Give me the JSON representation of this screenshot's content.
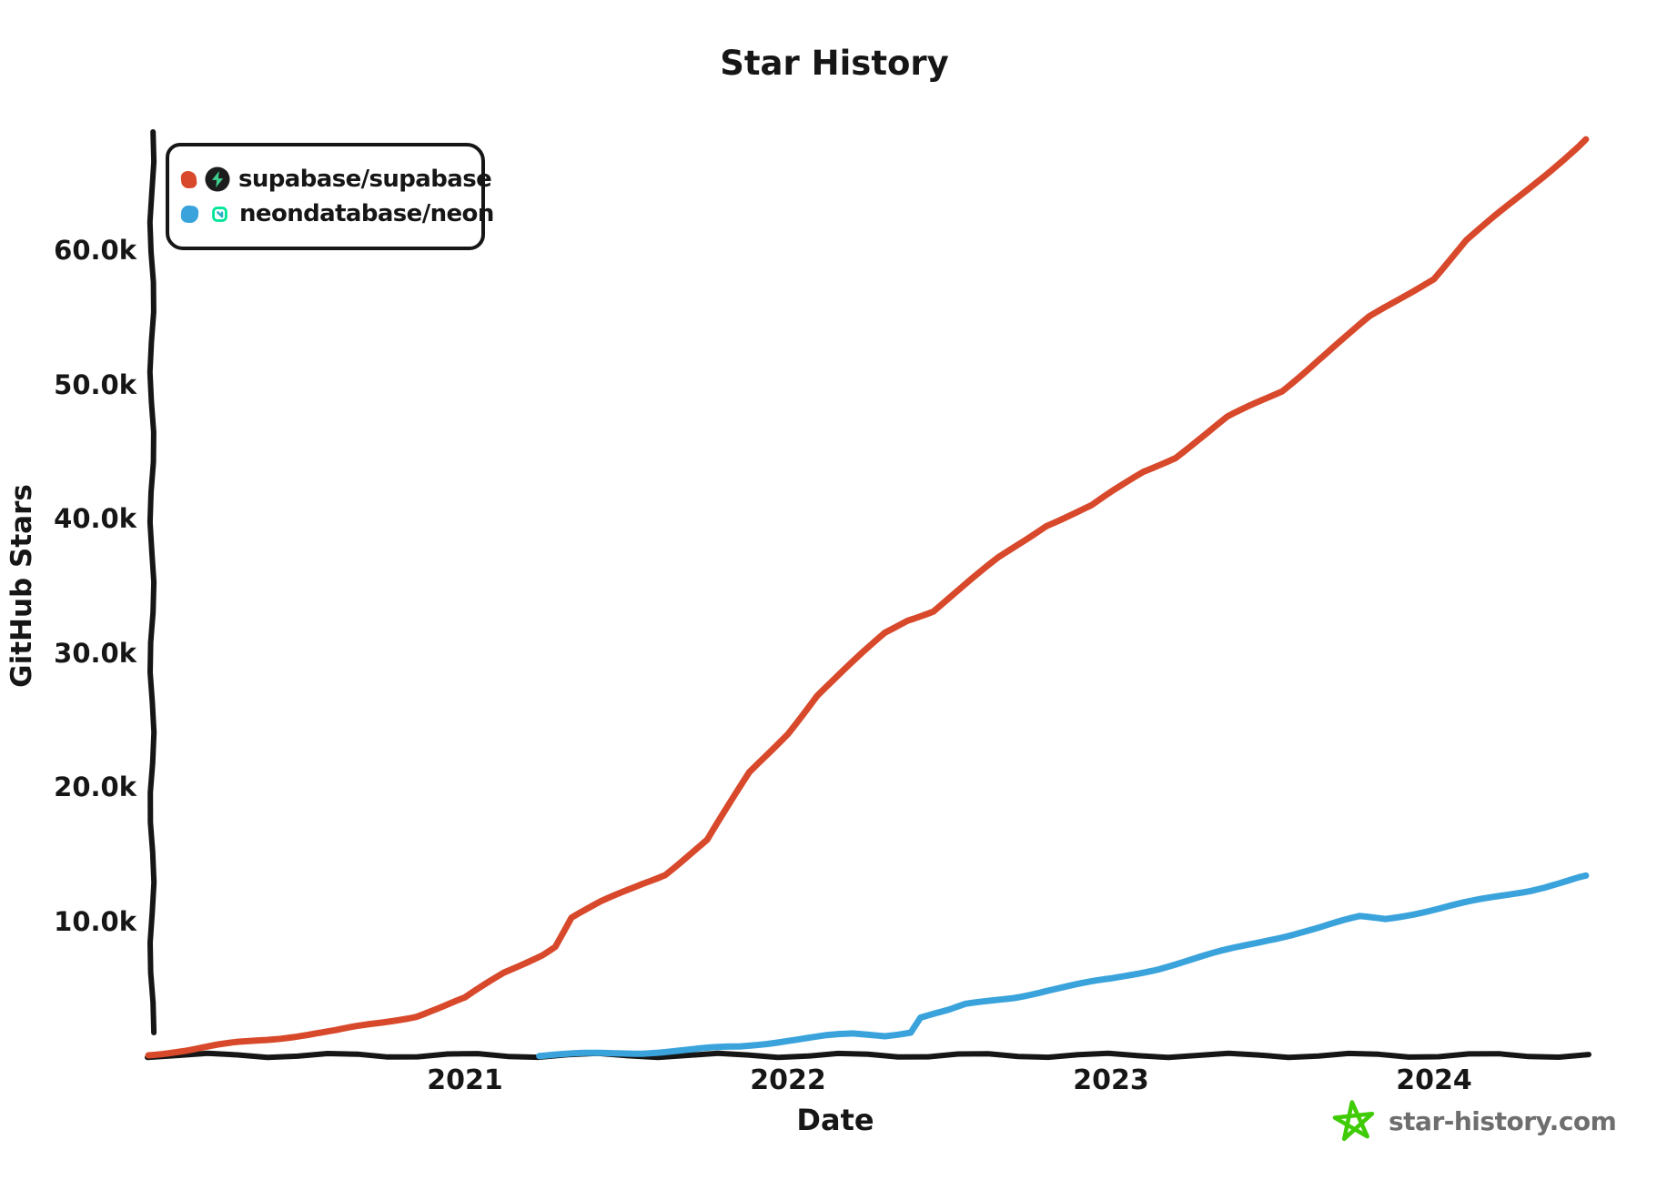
{
  "title": "Star History",
  "axes": {
    "x_label": "Date",
    "y_label": "GitHub Stars"
  },
  "legend": {
    "items": [
      {
        "label": "supabase/supabase",
        "color": "#D8492B",
        "icon": "supabase-logo"
      },
      {
        "label": "neondatabase/neon",
        "color": "#3AA3DC",
        "icon": "neon-logo"
      }
    ]
  },
  "watermark": {
    "text": "star-history.com"
  },
  "colors": {
    "axis": "#161616",
    "background": "#FFFFFF",
    "watermark_text": "#6E6E6E",
    "watermark_star": "#3FCB06",
    "supabase_logo_bg": "#1D1D1D",
    "supabase_logo_bolt": "#3ECF8E",
    "neon_logo_green": "#00E599",
    "neon_logo_teal": "#29AFC5"
  },
  "chart_data": {
    "type": "line",
    "title": "Star History",
    "xlabel": "Date",
    "ylabel": "GitHub Stars",
    "xlim": [
      2020.02,
      2024.55
    ],
    "ylim": [
      0,
      70000
    ],
    "grid": false,
    "legend_position": "top-left",
    "xticks": [
      {
        "value": 2021,
        "label": "2021"
      },
      {
        "value": 2022,
        "label": "2022"
      },
      {
        "value": 2023,
        "label": "2023"
      },
      {
        "value": 2024,
        "label": "2024"
      }
    ],
    "yticks": [
      {
        "value": 10000,
        "label": "10.0k"
      },
      {
        "value": 20000,
        "label": "20.0k"
      },
      {
        "value": 30000,
        "label": "30.0k"
      },
      {
        "value": 40000,
        "label": "40.0k"
      },
      {
        "value": 50000,
        "label": "50.0k"
      },
      {
        "value": 60000,
        "label": "60.0k"
      }
    ],
    "series": [
      {
        "name": "supabase/supabase",
        "color": "#D8492B",
        "points": [
          [
            2020.02,
            50
          ],
          [
            2020.15,
            350
          ],
          [
            2020.3,
            900
          ],
          [
            2020.45,
            1350
          ],
          [
            2020.6,
            1800
          ],
          [
            2020.75,
            2500
          ],
          [
            2020.85,
            3000
          ],
          [
            2021.0,
            4300
          ],
          [
            2021.12,
            6200
          ],
          [
            2021.24,
            7600
          ],
          [
            2021.28,
            8200
          ],
          [
            2021.33,
            10300
          ],
          [
            2021.42,
            11400
          ],
          [
            2021.55,
            12800
          ],
          [
            2021.62,
            13500
          ],
          [
            2021.75,
            16000
          ],
          [
            2021.88,
            21000
          ],
          [
            2022.0,
            24000
          ],
          [
            2022.09,
            26800
          ],
          [
            2022.3,
            31500
          ],
          [
            2022.37,
            32500
          ],
          [
            2022.45,
            33200
          ],
          [
            2022.65,
            37100
          ],
          [
            2022.8,
            39600
          ],
          [
            2022.94,
            41000
          ],
          [
            2023.1,
            43500
          ],
          [
            2023.2,
            44600
          ],
          [
            2023.36,
            47500
          ],
          [
            2023.53,
            49500
          ],
          [
            2023.64,
            51800
          ],
          [
            2023.8,
            55000
          ],
          [
            2024.0,
            58000
          ],
          [
            2024.1,
            60800
          ],
          [
            2024.25,
            63800
          ],
          [
            2024.47,
            68300
          ]
        ]
      },
      {
        "name": "neondatabase/neon",
        "color": "#3AA3DC",
        "points": [
          [
            2021.23,
            50
          ],
          [
            2021.4,
            120
          ],
          [
            2021.55,
            200
          ],
          [
            2021.7,
            350
          ],
          [
            2021.85,
            600
          ],
          [
            2022.0,
            1100
          ],
          [
            2022.12,
            1400
          ],
          [
            2022.2,
            1550
          ],
          [
            2022.3,
            1500
          ],
          [
            2022.38,
            1800
          ],
          [
            2022.41,
            2900
          ],
          [
            2022.5,
            3400
          ],
          [
            2022.55,
            3800
          ],
          [
            2022.7,
            4400
          ],
          [
            2022.8,
            4900
          ],
          [
            2023.0,
            5700
          ],
          [
            2023.15,
            6500
          ],
          [
            2023.25,
            7100
          ],
          [
            2023.49,
            8600
          ],
          [
            2023.65,
            9500
          ],
          [
            2023.77,
            10300
          ],
          [
            2023.85,
            10200
          ],
          [
            2024.0,
            10900
          ],
          [
            2024.14,
            11600
          ],
          [
            2024.3,
            12400
          ],
          [
            2024.47,
            13400
          ]
        ]
      }
    ]
  }
}
